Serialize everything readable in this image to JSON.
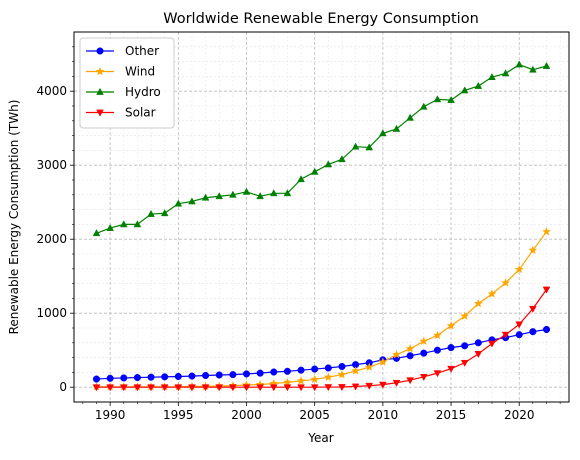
{
  "chart_data": {
    "type": "line",
    "title": "Worldwide Renewable Energy Consumption",
    "xlabel": "Year",
    "ylabel": "Renewable Energy Consumption (TWh)",
    "xlim": [
      1987.35,
      2023.65
    ],
    "ylim": [
      -200,
      4800
    ],
    "xticks": [
      1990,
      1995,
      2000,
      2005,
      2010,
      2015,
      2020
    ],
    "yticks": [
      0,
      1000,
      2000,
      3000,
      4000
    ],
    "grid": true,
    "legend_position": "upper-left",
    "x": [
      1989,
      1990,
      1991,
      1992,
      1993,
      1994,
      1995,
      1996,
      1997,
      1998,
      1999,
      2000,
      2001,
      2002,
      2003,
      2004,
      2005,
      2006,
      2007,
      2008,
      2009,
      2010,
      2011,
      2012,
      2013,
      2014,
      2015,
      2016,
      2017,
      2018,
      2019,
      2020,
      2021,
      2022
    ],
    "series": [
      {
        "name": "Other",
        "color": "#0000ff",
        "marker": "circle",
        "values": [
          110,
          120,
          125,
          130,
          135,
          140,
          145,
          150,
          158,
          165,
          170,
          180,
          190,
          205,
          215,
          230,
          245,
          260,
          280,
          305,
          330,
          370,
          390,
          425,
          460,
          500,
          535,
          560,
          600,
          640,
          670,
          710,
          750,
          780
        ]
      },
      {
        "name": "Wind",
        "color": "#ffa500",
        "marker": "star",
        "values": [
          5,
          5,
          5,
          5,
          5,
          5,
          5,
          10,
          12,
          15,
          20,
          30,
          35,
          50,
          65,
          85,
          105,
          135,
          170,
          220,
          270,
          340,
          440,
          520,
          620,
          700,
          830,
          960,
          1130,
          1260,
          1410,
          1590,
          1850,
          2100
        ]
      },
      {
        "name": "Hydro",
        "color": "#008000",
        "marker": "triangle-up",
        "values": [
          2080,
          2150,
          2200,
          2200,
          2340,
          2350,
          2480,
          2510,
          2560,
          2580,
          2600,
          2640,
          2580,
          2620,
          2620,
          2810,
          2910,
          3010,
          3080,
          3250,
          3240,
          3430,
          3490,
          3640,
          3790,
          3890,
          3880,
          4010,
          4070,
          4190,
          4240,
          4360,
          4290,
          4340
        ]
      },
      {
        "name": "Solar",
        "color": "#ff0000",
        "marker": "triangle-down",
        "values": [
          0,
          0,
          0,
          0,
          0,
          0,
          0,
          0,
          0,
          0,
          0,
          0,
          0,
          0,
          0,
          0,
          0,
          2,
          3,
          10,
          20,
          35,
          60,
          95,
          140,
          190,
          250,
          330,
          450,
          590,
          710,
          850,
          1060,
          1320
        ]
      }
    ]
  }
}
